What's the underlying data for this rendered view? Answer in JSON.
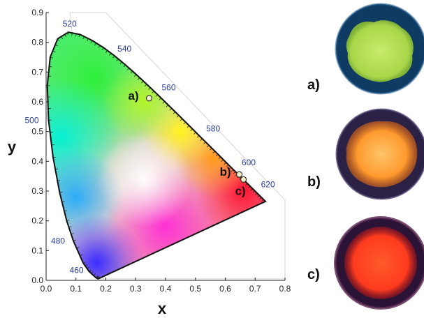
{
  "chart_data": {
    "type": "scatter",
    "title": "",
    "xlabel": "x",
    "ylabel": "y",
    "xlim": [
      0.0,
      0.8
    ],
    "ylim": [
      0.0,
      0.9
    ],
    "x_ticks": [
      "0.0",
      "0.1",
      "0.2",
      "0.3",
      "0.4",
      "0.5",
      "0.6",
      "0.7",
      "0.8"
    ],
    "y_ticks": [
      "0.0",
      "0.1",
      "0.2",
      "0.3",
      "0.4",
      "0.5",
      "0.6",
      "0.7",
      "0.8",
      "0.9"
    ],
    "grid": false,
    "background": "CIE 1931 chromaticity diagram",
    "locus": [
      [
        0.1741,
        0.005
      ],
      [
        0.1666,
        0.0089
      ],
      [
        0.144,
        0.0297
      ],
      [
        0.1241,
        0.0578
      ],
      [
        0.0913,
        0.1327
      ],
      [
        0.0687,
        0.2007
      ],
      [
        0.0454,
        0.295
      ],
      [
        0.0235,
        0.4127
      ],
      [
        0.0082,
        0.5384
      ],
      [
        0.0039,
        0.6548
      ],
      [
        0.0139,
        0.7502
      ],
      [
        0.0389,
        0.812
      ],
      [
        0.0743,
        0.8338
      ],
      [
        0.1142,
        0.8262
      ],
      [
        0.1547,
        0.8059
      ],
      [
        0.1929,
        0.7816
      ],
      [
        0.2296,
        0.7543
      ],
      [
        0.2658,
        0.7243
      ],
      [
        0.3016,
        0.6923
      ],
      [
        0.3373,
        0.6589
      ],
      [
        0.3731,
        0.6245
      ],
      [
        0.4087,
        0.5896
      ],
      [
        0.4441,
        0.5547
      ],
      [
        0.4788,
        0.5202
      ],
      [
        0.5125,
        0.4866
      ],
      [
        0.5448,
        0.4544
      ],
      [
        0.5752,
        0.4242
      ],
      [
        0.6029,
        0.3965
      ],
      [
        0.627,
        0.3725
      ],
      [
        0.6482,
        0.3514
      ],
      [
        0.6658,
        0.334
      ],
      [
        0.6915,
        0.3083
      ],
      [
        0.714,
        0.2859
      ],
      [
        0.7347,
        0.2653
      ]
    ],
    "wavelength_labels": [
      {
        "label": "460",
        "x": 0.144,
        "y": 0.0297
      },
      {
        "label": "480",
        "x": 0.0913,
        "y": 0.1327
      },
      {
        "label": "500",
        "x": 0.0082,
        "y": 0.5384
      },
      {
        "label": "520",
        "x": 0.0743,
        "y": 0.8338
      },
      {
        "label": "540",
        "x": 0.2296,
        "y": 0.7543
      },
      {
        "label": "560",
        "x": 0.3731,
        "y": 0.6245
      },
      {
        "label": "580",
        "x": 0.5125,
        "y": 0.4866
      },
      {
        "label": "600",
        "x": 0.627,
        "y": 0.3725
      },
      {
        "label": "620",
        "x": 0.6915,
        "y": 0.3083
      }
    ],
    "series": [
      {
        "values": [
          {
            "label": "a)",
            "x": 0.345,
            "y": 0.612
          },
          {
            "label": "b)",
            "x": 0.647,
            "y": 0.356
          },
          {
            "label": "c)",
            "x": 0.661,
            "y": 0.339
          }
        ]
      }
    ]
  },
  "photos": [
    {
      "label": "a)",
      "color": "#b9e35a",
      "background": "#0f3b63"
    },
    {
      "label": "b)",
      "color": "#ff9a2e",
      "background": "#2b2145"
    },
    {
      "label": "c)",
      "color": "#ff3b1e",
      "background": "#2b1335"
    }
  ]
}
